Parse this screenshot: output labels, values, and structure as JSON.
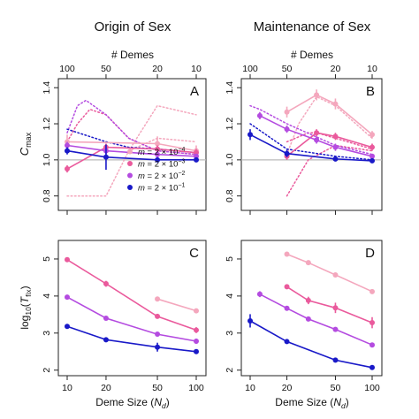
{
  "figure": {
    "column_titles": [
      "Origin of Sex",
      "Maintenance of Sex"
    ],
    "top_axis_label": "# Demes",
    "top_axis_ticks": [
      "100",
      "50",
      "20",
      "10"
    ],
    "bottom_axis_label_text": "Deme Size (",
    "bottom_axis_label_symbol": "N",
    "bottom_axis_label_subscript": "d",
    "bottom_axis_label_close": ")",
    "bottom_axis_ticks": [
      "10",
      "20",
      "50",
      "100"
    ],
    "cmax_label_symbol": "C",
    "cmax_label_subscript": "max",
    "tfix_label_prefix": "log",
    "tfix_label_subscript": "10",
    "tfix_label_open": "(",
    "tfix_label_symbol": "T",
    "tfix_label_var_sub": "fix",
    "tfix_label_close": ")",
    "upper_y_ticks": [
      "0.8",
      "1.0",
      "1.2",
      "1.4"
    ],
    "lower_y_ticks": [
      "2",
      "3",
      "4",
      "5"
    ],
    "legend": [
      {
        "m": "m",
        "eq": " = 2 × 10",
        "exp": "−4"
      },
      {
        "m": "m",
        "eq": " = 2 × 10",
        "exp": "−3"
      },
      {
        "m": "m",
        "eq": " = 2 × 10",
        "exp": "−2"
      },
      {
        "m": "m",
        "eq": " = 2 × 10",
        "exp": "−1"
      }
    ]
  },
  "colors": {
    "m_2e-4": "#f4a7bd",
    "m_2e-3": "#ea5a9c",
    "m_2e-2": "#b44be0",
    "m_2e-1": "#1919c8",
    "reference_line": "#bbbbbb"
  },
  "chart_data": [
    {
      "panel": "A",
      "type": "line",
      "title": "Origin of Sex",
      "xlabel": "Deme Size (N_d)",
      "ylabel": "C_max",
      "x_scale": "log",
      "xlim": [
        9,
        110
      ],
      "ylim": [
        0.72,
        1.45
      ],
      "reference_line_y": 1.0,
      "series": [
        {
          "key": "m_2e-4",
          "x": [
            10,
            50,
            100
          ],
          "y": [
            1.1,
            1.09,
            1.05
          ],
          "err": [
            0.04,
            0.04,
            0.03
          ]
        },
        {
          "key": "m_2e-3",
          "x": [
            10,
            20,
            50,
            100
          ],
          "y": [
            0.95,
            1.07,
            1.06,
            1.04
          ],
          "err": [
            0.02,
            0.02,
            0.02,
            0.02
          ]
        },
        {
          "key": "m_2e-2",
          "x": [
            10,
            20,
            50,
            100
          ],
          "y": [
            1.08,
            1.05,
            1.03,
            1.02
          ],
          "err": [
            0.02,
            0.02,
            0.02,
            0.01
          ]
        },
        {
          "key": "m_2e-1",
          "x": [
            10,
            20,
            50,
            100
          ],
          "y": [
            1.05,
            1.015,
            1.0,
            1.0
          ],
          "err": [
            0.02,
            0.07,
            0.01,
            0.01
          ]
        }
      ],
      "dotted_series": [
        {
          "key": "m_2e-4",
          "x": [
            10,
            20,
            30,
            50,
            100
          ],
          "y": [
            0.8,
            0.8,
            1.05,
            1.3,
            1.25
          ]
        },
        {
          "key": "m_2e-4",
          "x": [
            30,
            50,
            100
          ],
          "y": [
            1.05,
            1.12,
            1.1
          ]
        },
        {
          "key": "m_2e-3",
          "x": [
            10,
            12,
            15,
            20,
            30,
            50,
            100
          ],
          "y": [
            1.1,
            1.2,
            1.28,
            1.25,
            1.12,
            1.05,
            1.03
          ]
        },
        {
          "key": "m_2e-2",
          "x": [
            10,
            12,
            14,
            20,
            30,
            50,
            100
          ],
          "y": [
            1.15,
            1.3,
            1.33,
            1.25,
            1.12,
            1.05,
            1.03
          ]
        },
        {
          "key": "m_2e-1",
          "x": [
            10,
            20,
            30,
            50,
            100
          ],
          "y": [
            1.17,
            1.1,
            1.07,
            1.06,
            1.04
          ]
        }
      ]
    },
    {
      "panel": "B",
      "type": "line",
      "title": "Maintenance of Sex",
      "xlabel": "Deme Size (N_d)",
      "ylabel": "C_max",
      "x_scale": "log",
      "xlim": [
        9,
        110
      ],
      "ylim": [
        0.72,
        1.45
      ],
      "reference_line_y": 1.0,
      "series": [
        {
          "key": "m_2e-4",
          "x": [
            20,
            35,
            50,
            100
          ],
          "y": [
            1.265,
            1.36,
            1.31,
            1.14
          ],
          "err": [
            0.03,
            0.03,
            0.03,
            0.02
          ]
        },
        {
          "key": "m_2e-3",
          "x": [
            20,
            35,
            50,
            100
          ],
          "y": [
            1.02,
            1.15,
            1.13,
            1.07
          ],
          "err": [
            0.02,
            0.02,
            0.02,
            0.02
          ]
        },
        {
          "key": "m_2e-2",
          "x": [
            12,
            20,
            35,
            50,
            100
          ],
          "y": [
            1.245,
            1.17,
            1.11,
            1.07,
            1.02
          ],
          "err": [
            0.02,
            0.02,
            0.02,
            0.02,
            0.01
          ]
        },
        {
          "key": "m_2e-1",
          "x": [
            10,
            20,
            50,
            100
          ],
          "y": [
            1.14,
            1.035,
            1.005,
            0.995
          ],
          "err": [
            0.03,
            0.02,
            0.01,
            0.01
          ]
        }
      ],
      "dotted_series": [
        {
          "key": "m_2e-4",
          "x": [
            20,
            25,
            35,
            50,
            100
          ],
          "y": [
            1.03,
            1.2,
            1.35,
            1.3,
            1.12
          ]
        },
        {
          "key": "m_2e-3",
          "x": [
            20,
            30,
            35,
            50,
            100
          ],
          "y": [
            1.1,
            1.15,
            1.15,
            1.12,
            1.06
          ]
        },
        {
          "key": "m_2e-3",
          "x": [
            20,
            30,
            50,
            100
          ],
          "y": [
            0.8,
            1.0,
            1.08,
            1.05
          ]
        },
        {
          "key": "m_2e-2",
          "x": [
            10,
            12,
            20,
            50,
            100
          ],
          "y": [
            1.3,
            1.28,
            1.2,
            1.08,
            1.03
          ]
        },
        {
          "key": "m_2e-1",
          "x": [
            10,
            20,
            50,
            100
          ],
          "y": [
            1.2,
            1.06,
            1.02,
            1.0
          ]
        }
      ]
    },
    {
      "panel": "C",
      "type": "line",
      "xlabel": "Deme Size (N_d)",
      "ylabel": "log10(T_fix)",
      "x_scale": "log",
      "xlim": [
        9,
        110
      ],
      "ylim": [
        1.85,
        5.5
      ],
      "series": [
        {
          "key": "m_2e-4",
          "x": [
            50,
            100
          ],
          "y": [
            3.92,
            3.6
          ],
          "err": [
            0.05,
            0.05
          ]
        },
        {
          "key": "m_2e-3",
          "x": [
            10,
            20,
            50,
            100
          ],
          "y": [
            4.98,
            4.33,
            3.45,
            3.08
          ],
          "err": [
            0.04,
            0.08,
            0.05,
            0.08
          ]
        },
        {
          "key": "m_2e-2",
          "x": [
            10,
            20,
            50,
            100
          ],
          "y": [
            3.97,
            3.4,
            2.97,
            2.78
          ],
          "err": [
            0.04,
            0.05,
            0.06,
            0.07
          ]
        },
        {
          "key": "m_2e-1",
          "x": [
            10,
            20,
            50,
            100
          ],
          "y": [
            3.18,
            2.82,
            2.62,
            2.5
          ],
          "err": [
            0.04,
            0.05,
            0.12,
            0.06
          ]
        }
      ]
    },
    {
      "panel": "D",
      "type": "line",
      "xlabel": "Deme Size (N_d)",
      "ylabel": "log10(T_fix)",
      "x_scale": "log",
      "xlim": [
        9,
        110
      ],
      "ylim": [
        1.85,
        5.5
      ],
      "series": [
        {
          "key": "m_2e-4",
          "x": [
            20,
            30,
            50,
            100
          ],
          "y": [
            5.13,
            4.9,
            4.57,
            4.12
          ],
          "err": [
            0.04,
            0.04,
            0.05,
            0.06
          ]
        },
        {
          "key": "m_2e-3",
          "x": [
            20,
            30,
            50,
            100
          ],
          "y": [
            4.25,
            3.88,
            3.68,
            3.28
          ],
          "err": [
            0.05,
            0.1,
            0.14,
            0.15
          ]
        },
        {
          "key": "m_2e-2",
          "x": [
            12,
            20,
            30,
            50,
            100
          ],
          "y": [
            4.05,
            3.67,
            3.38,
            3.1,
            2.68
          ],
          "err": [
            0.08,
            0.05,
            0.05,
            0.05,
            0.04
          ]
        },
        {
          "key": "m_2e-1",
          "x": [
            10,
            20,
            50,
            100
          ],
          "y": [
            3.33,
            2.77,
            2.27,
            2.07
          ],
          "err": [
            0.18,
            0.04,
            0.04,
            0.03
          ]
        }
      ]
    }
  ]
}
